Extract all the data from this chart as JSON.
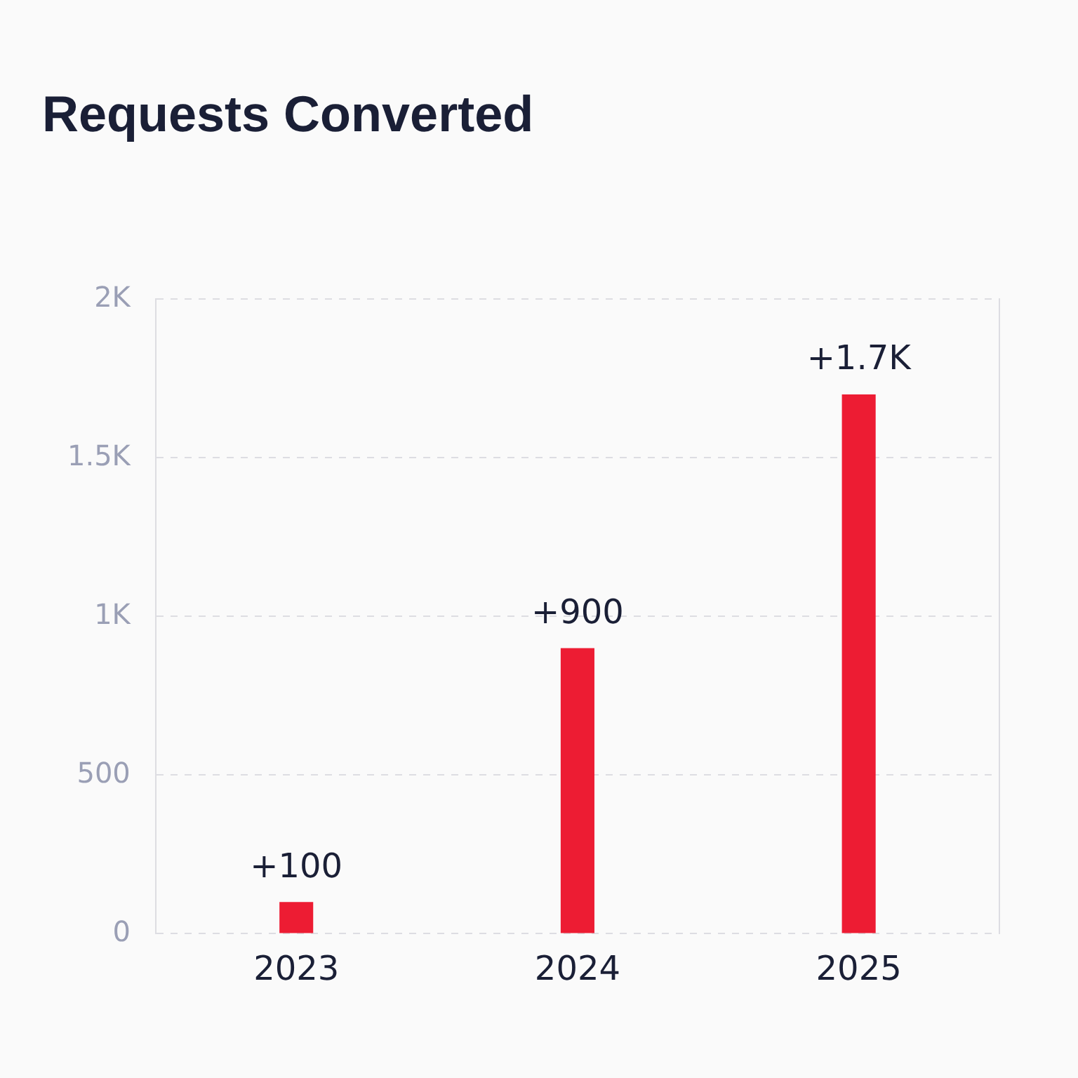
{
  "chart_data": {
    "type": "bar",
    "title": "Requests Converted",
    "categories": [
      "2023",
      "2024",
      "2025"
    ],
    "values": [
      100,
      900,
      1700
    ],
    "color": "#ed1c33",
    "value_labels": [
      "+100",
      "+900",
      "+1.7K"
    ],
    "ylim": [
      0,
      2000
    ],
    "yticks": [
      {
        "value": 0,
        "label": "0"
      },
      {
        "value": 500,
        "label": "500"
      },
      {
        "value": 1000,
        "label": "1K"
      },
      {
        "value": 1500,
        "label": "1.5K"
      },
      {
        "value": 2000,
        "label": "2K"
      }
    ],
    "grid": "y",
    "legend": false
  }
}
